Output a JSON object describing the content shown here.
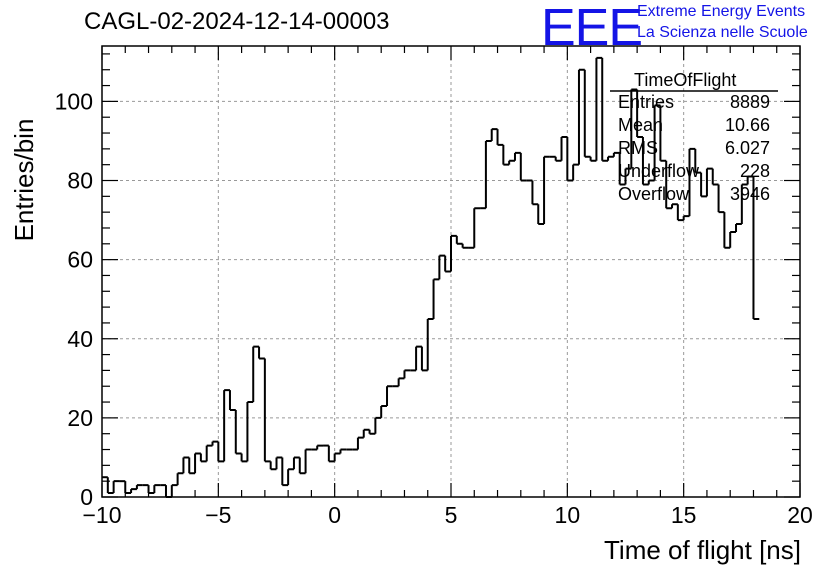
{
  "title": "CAGL-02-2024-12-14-00003",
  "logo": {
    "mark": "EEE",
    "line1": "Extreme Energy Events",
    "line2": "La Scienza nelle Scuole",
    "color": "#1414e6"
  },
  "stats": {
    "title": "TimeOfFlight",
    "rows": [
      {
        "label": "Entries",
        "value": "8889"
      },
      {
        "label": "Mean",
        "value": "10.66"
      },
      {
        "label": "RMS",
        "value": "6.027"
      },
      {
        "label": "Underflow",
        "value": "228"
      },
      {
        "label": "Overflow",
        "value": "3946"
      }
    ]
  },
  "chart_data": {
    "type": "bar",
    "title": "CAGL-02-2024-12-14-00003",
    "xlabel": "Time of flight [ns]",
    "ylabel": "Entries/bin",
    "xlim": [
      -10,
      20
    ],
    "ylim": [
      0,
      114
    ],
    "grid": true,
    "xticks": [
      -10,
      -5,
      0,
      5,
      10,
      15,
      20
    ],
    "yticks": [
      0,
      20,
      40,
      60,
      80,
      100
    ],
    "bin_width": 0.25,
    "bin_start": -10,
    "series": [
      {
        "values": [
          5,
          1,
          4,
          4,
          1,
          2,
          3,
          3,
          1,
          3,
          3,
          0,
          3,
          6,
          10,
          6,
          11,
          9,
          13,
          14,
          9,
          27,
          22,
          11,
          9,
          24,
          38,
          35,
          9,
          7,
          10,
          3,
          7,
          10,
          6,
          12,
          12,
          13,
          13,
          9,
          11,
          12,
          12,
          12,
          15,
          17,
          16,
          20,
          23,
          28,
          28,
          30,
          32,
          32,
          38,
          32,
          45,
          55,
          61,
          57,
          66,
          64,
          63,
          63,
          73,
          73,
          90,
          93,
          89,
          84,
          85,
          87,
          80,
          80,
          74,
          69,
          86,
          86,
          85,
          91,
          80,
          84,
          108,
          86,
          85,
          111,
          85,
          86,
          87,
          79,
          83,
          103,
          91,
          79,
          80,
          99,
          85,
          73,
          74,
          70,
          71,
          88,
          82,
          76,
          83,
          79,
          72,
          63,
          67,
          69,
          79,
          81,
          45
        ]
      }
    ]
  }
}
